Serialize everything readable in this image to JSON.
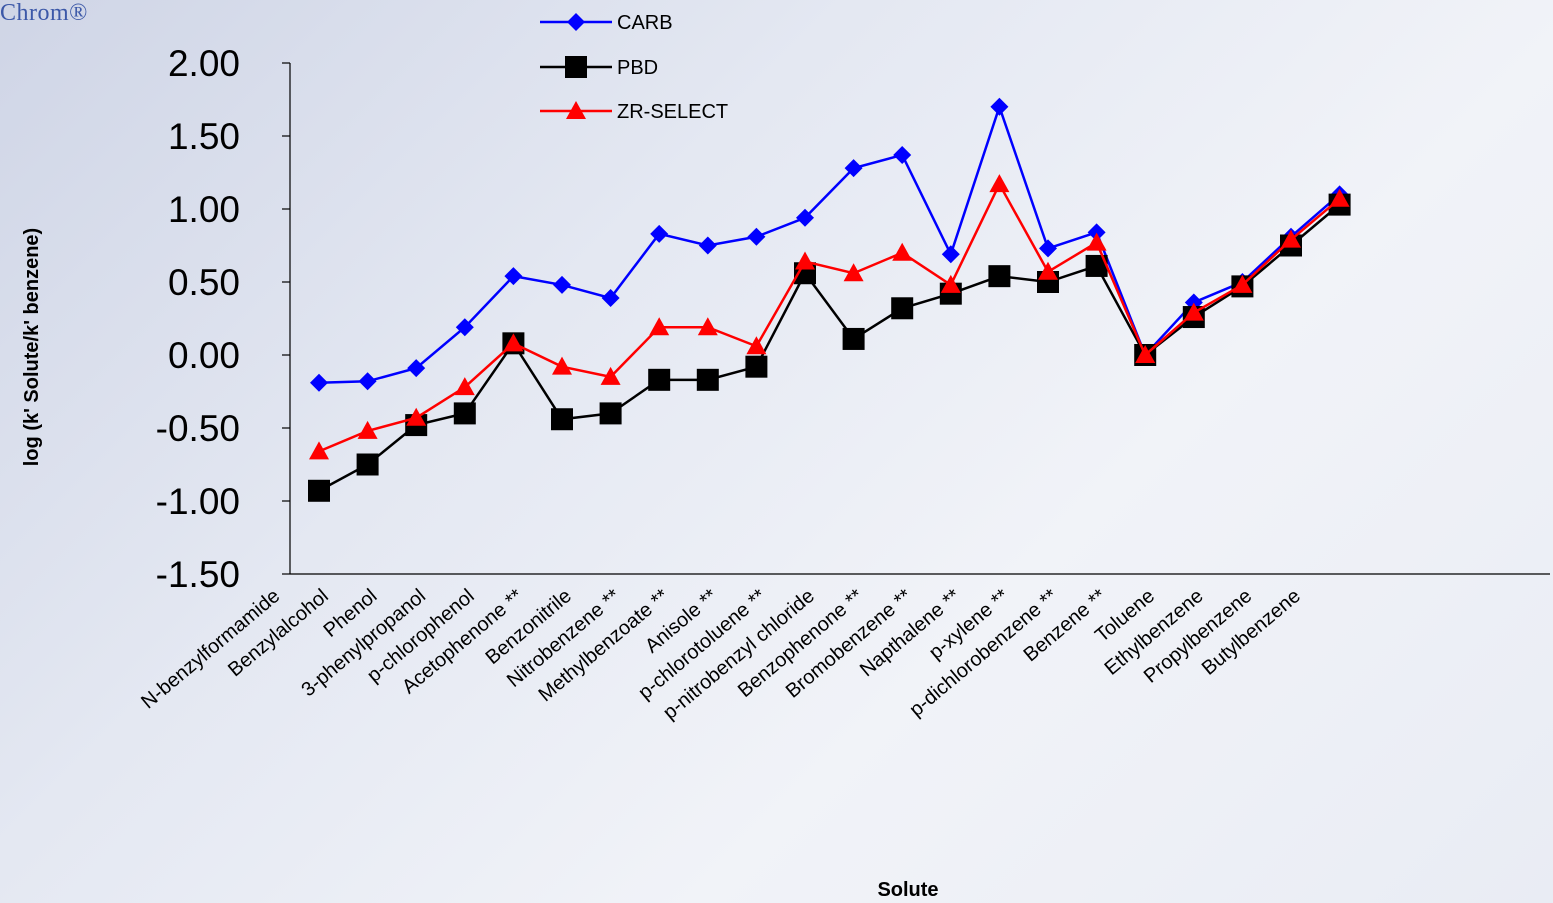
{
  "brand": {
    "text": "Chrom®"
  },
  "chart_data": {
    "type": "line",
    "title": "",
    "xlabel": "Solute",
    "ylabel": "log (k' Solute/k' benzene)",
    "ylim": [
      -1.5,
      2.0
    ],
    "yticks": [
      2.0,
      1.5,
      1.0,
      0.5,
      0.0,
      -0.5,
      -1.0,
      -1.5
    ],
    "ytick_labels": [
      "2.00",
      "1.50",
      "1.00",
      "0.50",
      "0.00",
      "-0.50",
      "-1.00",
      "-1.50"
    ],
    "grid": false,
    "legend_position": "top-center",
    "categories": [
      "N-benzylformamide",
      "Benzylalcohol",
      "Phenol",
      "3-phenylpropanol",
      "p-chlorophenol",
      "Acetophenone **",
      "Benzonitrile",
      "Nitrobenzene **",
      "Methylbenzoate **",
      "Anisole **",
      "p-chlorotoluene **",
      "p-nitrobenzyl chloride",
      "Benzophenone **",
      "Bromobenzene **",
      "Napthalene **",
      "p-xylene **",
      "p-dichlorobenzene **",
      "Benzene **",
      "Toluene",
      "Ethylbenzene",
      "Propylbenzene",
      "Butylbenzene"
    ],
    "series": [
      {
        "name": "CARB",
        "color": "#0000ff",
        "marker": "diamond",
        "values": [
          -0.19,
          -0.18,
          -0.09,
          0.19,
          0.54,
          0.48,
          0.39,
          0.83,
          0.75,
          0.81,
          0.94,
          1.28,
          1.37,
          0.69,
          1.7,
          0.73,
          0.84,
          0.0,
          0.36,
          0.5,
          0.81,
          1.1
        ]
      },
      {
        "name": "PBD",
        "color": "#000000",
        "marker": "square",
        "values": [
          -0.93,
          -0.75,
          -0.48,
          -0.4,
          0.08,
          -0.44,
          -0.4,
          -0.17,
          -0.17,
          -0.08,
          0.56,
          0.11,
          0.32,
          0.42,
          0.54,
          0.5,
          0.61,
          0.0,
          0.26,
          0.47,
          0.75,
          1.03
        ]
      },
      {
        "name": "ZR-SELECT",
        "color": "#ff0000",
        "marker": "triangle",
        "values": [
          -0.66,
          -0.52,
          -0.43,
          -0.22,
          0.08,
          -0.08,
          -0.15,
          0.19,
          0.19,
          0.06,
          0.64,
          0.56,
          0.7,
          0.48,
          1.17,
          0.57,
          0.77,
          0.0,
          0.29,
          0.48,
          0.79,
          1.07
        ]
      }
    ]
  }
}
